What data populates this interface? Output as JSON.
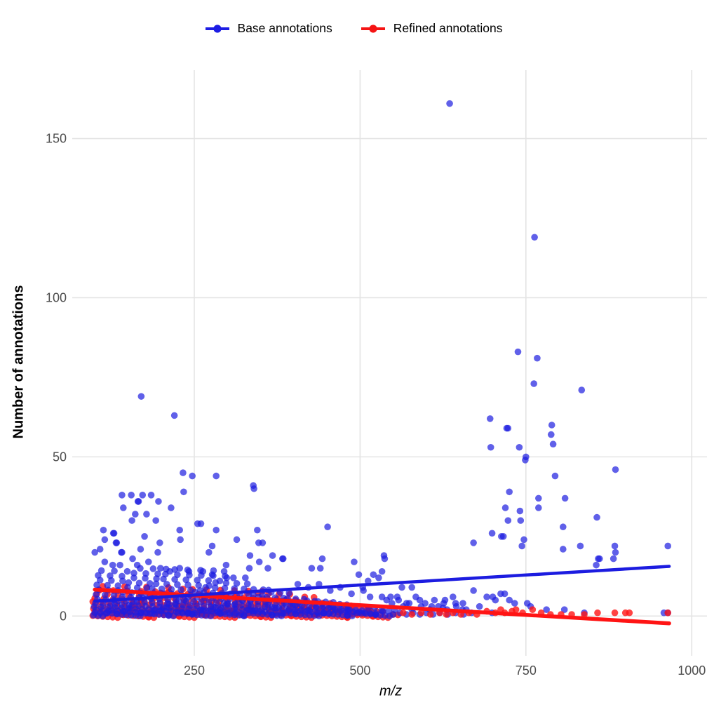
{
  "legend": {
    "items": [
      {
        "label": "Base annotations",
        "color": "#1d1de4"
      },
      {
        "label": "Refined annotations",
        "color": "#f51414"
      }
    ]
  },
  "chart_data": {
    "type": "scatter",
    "title": "",
    "xlabel": "m/z",
    "ylabel": "Number of annotations",
    "x_ticks": [
      250,
      500,
      750,
      1000
    ],
    "y_ticks": [
      0,
      50,
      100,
      150
    ],
    "xlim": [
      66,
      1023
    ],
    "ylim": [
      -12.5,
      171.5
    ],
    "grid": true,
    "legend_position": "top-center",
    "tick_color": "#4d4d4d",
    "grid_color": "#e4e4e4",
    "series": [
      {
        "name": "Base annotations",
        "color": "#1c1ce0",
        "alpha": 0.7,
        "trend": {
          "x": [
            100,
            966
          ],
          "y": [
            4.7,
            15.6
          ]
        },
        "trend_width": 4.5,
        "points": [
          [
            635,
            161
          ],
          [
            763,
            119
          ],
          [
            738,
            83
          ],
          [
            767,
            81
          ],
          [
            762,
            73
          ],
          [
            834,
            71
          ],
          [
            170,
            69
          ],
          [
            220,
            63
          ],
          [
            696,
            62
          ],
          [
            789,
            60
          ],
          [
            721,
            59
          ],
          [
            723,
            59
          ],
          [
            788,
            57
          ],
          [
            791,
            54
          ],
          [
            697,
            53
          ],
          [
            740,
            53
          ],
          [
            750,
            50
          ],
          [
            749,
            49
          ],
          [
            885,
            46
          ],
          [
            233,
            45
          ],
          [
            247,
            44
          ],
          [
            283,
            44
          ],
          [
            794,
            44
          ],
          [
            339,
            41
          ],
          [
            340,
            40
          ],
          [
            725,
            39
          ],
          [
            234,
            39
          ],
          [
            141,
            38
          ],
          [
            155,
            38
          ],
          [
            172,
            38
          ],
          [
            185,
            38
          ],
          [
            769,
            37
          ],
          [
            809,
            37
          ],
          [
            165,
            36
          ],
          [
            166,
            36
          ],
          [
            196,
            36
          ],
          [
            143,
            34
          ],
          [
            215,
            34
          ],
          [
            719,
            34
          ],
          [
            769,
            34
          ],
          [
            741,
            33
          ],
          [
            161,
            32
          ],
          [
            178,
            32
          ],
          [
            857,
            31
          ],
          [
            156,
            30
          ],
          [
            192,
            30
          ],
          [
            723,
            30
          ],
          [
            742,
            30
          ],
          [
            255,
            29
          ],
          [
            260,
            29
          ],
          [
            806,
            28
          ],
          [
            451,
            28
          ],
          [
            113,
            27
          ],
          [
            228,
            27
          ],
          [
            283,
            27
          ],
          [
            345,
            27
          ],
          [
            128,
            26
          ],
          [
            129,
            26
          ],
          [
            699,
            26
          ],
          [
            175,
            25
          ],
          [
            713,
            25
          ],
          [
            716,
            25
          ],
          [
            115,
            24
          ],
          [
            229,
            24
          ],
          [
            314,
            24
          ],
          [
            747,
            24
          ],
          [
            132,
            23
          ],
          [
            133,
            23
          ],
          [
            198,
            23
          ],
          [
            347,
            23
          ],
          [
            353,
            23
          ],
          [
            671,
            23
          ],
          [
            744,
            22
          ],
          [
            277,
            22
          ],
          [
            832,
            22
          ],
          [
            884,
            22
          ],
          [
            964,
            22
          ],
          [
            108,
            21
          ],
          [
            169,
            21
          ],
          [
            806,
            21
          ],
          [
            100,
            20
          ],
          [
            140,
            20
          ],
          [
            141,
            20
          ],
          [
            195,
            20
          ],
          [
            272,
            20
          ],
          [
            885,
            20
          ],
          [
            334,
            19
          ],
          [
            368,
            19
          ],
          [
            536,
            19
          ],
          [
            859,
            18
          ],
          [
            861,
            18
          ],
          [
            882,
            18
          ],
          [
            383,
            18
          ],
          [
            384,
            18
          ],
          [
            537,
            18
          ],
          [
            443,
            18
          ],
          [
            157,
            18
          ],
          [
            115,
            17
          ],
          [
            181,
            17
          ],
          [
            348,
            17
          ],
          [
            491,
            17
          ],
          [
            856,
            16
          ],
          [
            127,
            16
          ],
          [
            138,
            16
          ],
          [
            164,
            16
          ],
          [
            298,
            16
          ],
          [
            199,
            15
          ],
          [
            228,
            15
          ],
          [
            427,
            15
          ],
          [
            440,
            15
          ],
          [
            361,
            15
          ],
          [
            333,
            15
          ],
          [
            213,
            14
          ],
          [
            242,
            14
          ],
          [
            263,
            14
          ],
          [
            277,
            13
          ],
          [
            295,
            14
          ],
          [
            309,
            12
          ],
          [
            327,
            12
          ],
          [
            533,
            14
          ],
          [
            520,
            13
          ],
          [
            528,
            12
          ],
          [
            498,
            13
          ],
          [
            512,
            11
          ],
          [
            406,
            10
          ],
          [
            422,
            9
          ],
          [
            438,
            10
          ],
          [
            455,
            8
          ],
          [
            470,
            9
          ],
          [
            487,
            7
          ],
          [
            504,
            9
          ],
          [
            505,
            8
          ],
          [
            515,
            6
          ],
          [
            533,
            6
          ],
          [
            540,
            5
          ],
          [
            546,
            6
          ],
          [
            556,
            6
          ],
          [
            563,
            9
          ],
          [
            574,
            4
          ],
          [
            578,
            9
          ],
          [
            590,
            5
          ],
          [
            608,
            3
          ],
          [
            626,
            4
          ],
          [
            645,
            3
          ],
          [
            654,
            2
          ],
          [
            660,
            2
          ],
          [
            668,
            1
          ],
          [
            680,
            3
          ],
          [
            691,
            6
          ],
          [
            699,
            1
          ],
          [
            700,
            6
          ],
          [
            704,
            5
          ],
          [
            712,
            7
          ],
          [
            718,
            7
          ],
          [
            725,
            5
          ],
          [
            733,
            4
          ],
          [
            752,
            4
          ],
          [
            757,
            3
          ],
          [
            781,
            2
          ],
          [
            808,
            2
          ],
          [
            838,
            1
          ],
          [
            958,
            1
          ],
          [
            964,
            1
          ],
          [
            625,
            2.5
          ],
          [
            644,
            4
          ],
          [
            671,
            8
          ],
          [
            552,
            2
          ],
          [
            565,
            3
          ],
          [
            578,
            2
          ],
          [
            592,
            3
          ],
          [
            605,
            2
          ],
          [
            618,
            3
          ],
          [
            631,
            2
          ],
          [
            550,
            0.5
          ],
          [
            560,
            1
          ],
          [
            570,
            0.5
          ],
          [
            580,
            1
          ],
          [
            590,
            0.5
          ],
          [
            600,
            1
          ],
          [
            610,
            0.5
          ],
          [
            620,
            1
          ],
          [
            632,
            0.5
          ],
          [
            644,
            1
          ],
          [
            656,
            0.5
          ],
          [
            548,
            4
          ],
          [
            558,
            5
          ],
          [
            570,
            4
          ],
          [
            584,
            6
          ],
          [
            598,
            4
          ],
          [
            612,
            5
          ],
          [
            628,
            5
          ],
          [
            640,
            6
          ],
          [
            655,
            4
          ]
        ],
        "carpet_rows": [
          {
            "y": 0.5,
            "x0": 100,
            "step": 6,
            "n": 75
          },
          {
            "y": 1.3,
            "x0": 102,
            "step": 7.5,
            "n": 60
          },
          {
            "y": 2.2,
            "x0": 104,
            "step": 8.5,
            "n": 50
          },
          {
            "y": 3.2,
            "x0": 101,
            "step": 9.5,
            "n": 41
          },
          {
            "y": 4.3,
            "x0": 103,
            "step": 10.5,
            "n": 35
          },
          {
            "y": 5.5,
            "x0": 106,
            "step": 11.5,
            "n": 28
          },
          {
            "y": 7,
            "x0": 104,
            "step": 12.5,
            "n": 24
          },
          {
            "y": 8.5,
            "x0": 108,
            "step": 13.5,
            "n": 20
          },
          {
            "y": 10,
            "x0": 105,
            "step": 15,
            "n": 16
          },
          {
            "y": 11.5,
            "x0": 110,
            "step": 16,
            "n": 13
          },
          {
            "y": 13,
            "x0": 107,
            "step": 17,
            "n": 12
          },
          {
            "y": 14.5,
            "x0": 112,
            "step": 18.5,
            "n": 10
          }
        ]
      },
      {
        "name": "Refined annotations",
        "color": "#ff1414",
        "alpha": 0.8,
        "trend": {
          "x": [
            100,
            966
          ],
          "y": [
            8.3,
            -2.3
          ]
        },
        "trend_width": 5.5,
        "points": [
          [
            565,
            1
          ],
          [
            578,
            0.5
          ],
          [
            592,
            1
          ],
          [
            606,
            0.5
          ],
          [
            620,
            1
          ],
          [
            630,
            0.5
          ],
          [
            640,
            1
          ],
          [
            652,
            0.5
          ],
          [
            664,
            1
          ],
          [
            676,
            0.5
          ],
          [
            691,
            1.5
          ],
          [
            704,
            1
          ],
          [
            712,
            2
          ],
          [
            718,
            1
          ],
          [
            729,
            1.5
          ],
          [
            735,
            2
          ],
          [
            745,
            1
          ],
          [
            760,
            2
          ],
          [
            773,
            1
          ],
          [
            787,
            0.5
          ],
          [
            803,
            0.5
          ],
          [
            819,
            0.5
          ],
          [
            838,
            0.5
          ],
          [
            858,
            1
          ],
          [
            884,
            1
          ],
          [
            900,
            1
          ],
          [
            906,
            1
          ],
          [
            964,
            1
          ]
        ],
        "carpet_rows": [
          {
            "y": 0,
            "x0": 100,
            "step": 6.5,
            "n": 71
          },
          {
            "y": 1.2,
            "x0": 103,
            "step": 8,
            "n": 55
          },
          {
            "y": 2.2,
            "x0": 101,
            "step": 9,
            "n": 47
          },
          {
            "y": 3.3,
            "x0": 104,
            "step": 10,
            "n": 39
          },
          {
            "y": 4.4,
            "x0": 100,
            "step": 11,
            "n": 33
          },
          {
            "y": 5.5,
            "x0": 103,
            "step": 13,
            "n": 26
          },
          {
            "y": 6.8,
            "x0": 106,
            "step": 15,
            "n": 20
          },
          {
            "y": 8,
            "x0": 110,
            "step": 20,
            "n": 13
          },
          {
            "y": 9.2,
            "x0": 115,
            "step": 32,
            "n": 4
          }
        ]
      }
    ]
  }
}
